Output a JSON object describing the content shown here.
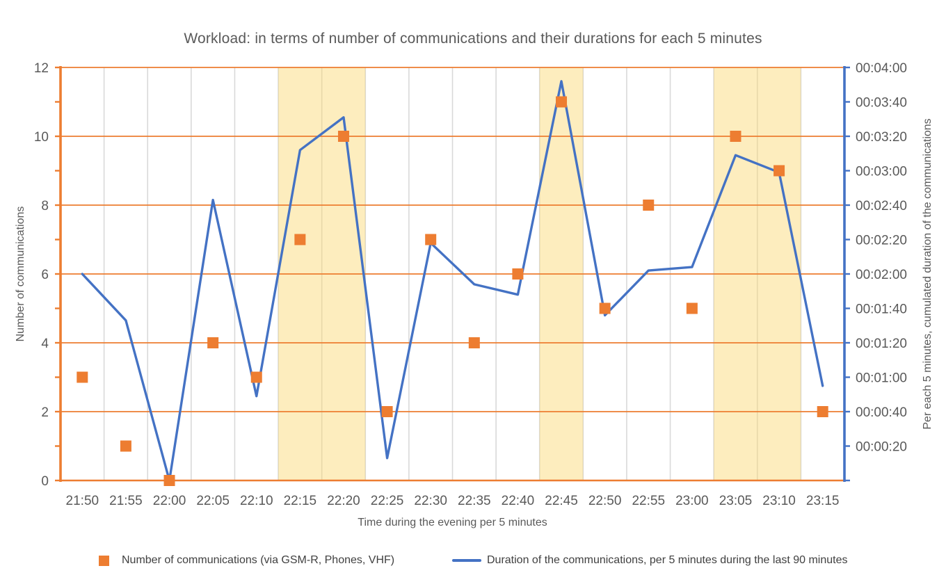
{
  "title": "Workload: in terms of number of communications and their durations for each 5 minutes",
  "axes": {
    "x_title": "Time during the evening per 5 minutes",
    "y_left_title": "Number of communications",
    "y_right_title": "Per each 5 minutes, cumulated duration of the communications",
    "y_left_tick_labels": [
      "0",
      "2",
      "4",
      "6",
      "8",
      "10",
      "12"
    ],
    "y_right_tick_labels": [
      "00:00:20",
      "00:00:40",
      "00:01:00",
      "00:01:20",
      "00:01:40",
      "00:02:00",
      "00:02:20",
      "00:02:40",
      "00:03:00",
      "00:03:20",
      "00:03:40",
      "00:04:00"
    ]
  },
  "legend": [
    {
      "swatch": "orange-square",
      "label": "Number of communications (via GSM-R, Phones, VHF)"
    },
    {
      "swatch": "blue-line",
      "label": "Duration of the communications, per 5 minutes during the last 90 minutes"
    }
  ],
  "colors": {
    "orange": "#ED7D31",
    "blue": "#4472C4",
    "band_yellow": "rgba(250,215,110,0.45)",
    "grid_gray": "#D9D9D9",
    "text_gray": "#595959",
    "legend_text": "#404040"
  },
  "chart_data": {
    "type": "line",
    "subtype": "combo: square scatter markers (left axis) + line (right axis)",
    "title": "Workload: in terms of number of communications and their durations for each 5 minutes",
    "xlabel": "Time during the evening per 5 minutes",
    "ylabel_left": "Number of communications",
    "ylabel_right": "Per each 5 minutes, cumulated duration of the communications",
    "ylim_left": [
      0,
      12
    ],
    "ylim_right_seconds": [
      0,
      240
    ],
    "grid": "horizontal orange every 2 units, vertical gray at category boundaries",
    "legend_position": "bottom",
    "categories": [
      "21:50",
      "21:55",
      "22:00",
      "22:05",
      "22:10",
      "22:15",
      "22:20",
      "22:25",
      "22:30",
      "22:35",
      "22:40",
      "22:45",
      "22:50",
      "22:55",
      "23:00",
      "23:05",
      "23:10",
      "23:15"
    ],
    "series": [
      {
        "name": "Number of communications (via GSM-R, Phones, VHF)",
        "type": "scatter-square",
        "axis": "left",
        "marker_color": "#ED7D31",
        "values": [
          3,
          1,
          0,
          4,
          3,
          7,
          10,
          2,
          7,
          4,
          6,
          11,
          5,
          8,
          5,
          10,
          9,
          2
        ]
      },
      {
        "name": "Duration of the communications, per 5 minutes during the last 90 minutes",
        "type": "line",
        "axis": "right",
        "line_color": "#4472C4",
        "values_seconds": [
          120,
          93,
          0,
          163,
          49,
          192,
          211,
          13,
          138,
          114,
          108,
          232,
          96,
          122,
          124,
          189,
          179,
          55
        ],
        "values_hms": [
          "00:02:00",
          "00:01:33",
          "00:00:00",
          "00:02:43",
          "00:00:49",
          "00:03:12",
          "00:03:31",
          "00:00:13",
          "00:02:18",
          "00:01:54",
          "00:01:48",
          "00:03:52",
          "00:01:36",
          "00:02:02",
          "00:02:04",
          "00:03:09",
          "00:02:59",
          "00:00:55"
        ]
      }
    ],
    "highlight_bands": [
      {
        "from": "22:15",
        "to": "22:20"
      },
      {
        "from": "22:45",
        "to": "22:45"
      },
      {
        "from": "23:05",
        "to": "23:10"
      }
    ]
  }
}
